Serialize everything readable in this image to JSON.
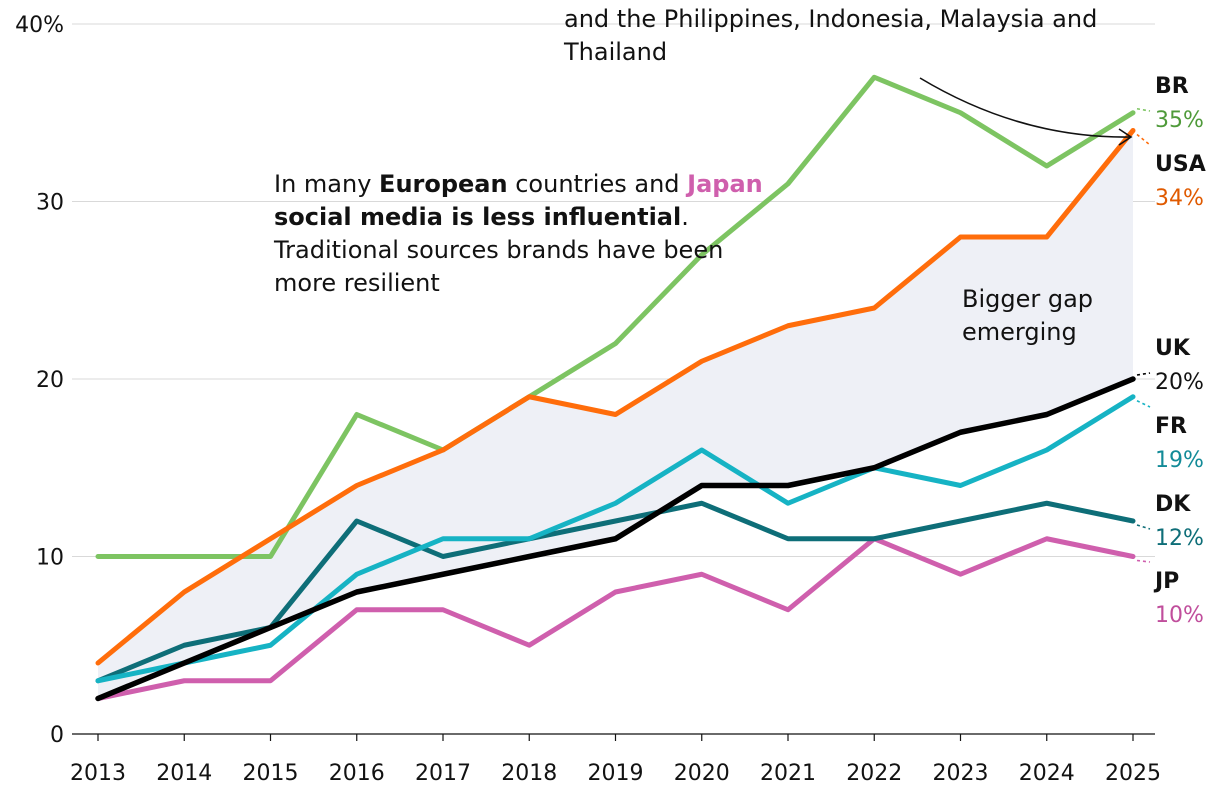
{
  "chart_data": {
    "type": "line",
    "x": [
      2013,
      2014,
      2015,
      2016,
      2017,
      2018,
      2019,
      2020,
      2021,
      2022,
      2023,
      2024,
      2025
    ],
    "ylim": [
      0,
      40
    ],
    "yticks": [
      "0",
      "10",
      "20",
      "30",
      "40%"
    ],
    "series": [
      {
        "name": "BR",
        "color": "#7dc462",
        "label_color": "#4f9a3a",
        "values": [
          10,
          10,
          10,
          18,
          16,
          19,
          22,
          27,
          31,
          37,
          35,
          32,
          35
        ],
        "end_label": "35%"
      },
      {
        "name": "USA",
        "color": "#ff6d0b",
        "label_color": "#e05a00",
        "values": [
          4,
          8,
          11,
          14,
          16,
          19,
          18,
          21,
          23,
          24,
          28,
          28,
          34
        ],
        "end_label": "34%"
      },
      {
        "name": "UK",
        "color": "#000000",
        "label_color": "#121212",
        "values": [
          2,
          4,
          6,
          8,
          9,
          10,
          11,
          14,
          14,
          15,
          17,
          18,
          20
        ],
        "end_label": "20%"
      },
      {
        "name": "FR",
        "color": "#16b3c4",
        "label_color": "#138b98",
        "values": [
          3,
          4,
          5,
          9,
          11,
          11,
          13,
          16,
          13,
          15,
          14,
          16,
          19
        ],
        "end_label": "19%"
      },
      {
        "name": "DK",
        "color": "#0e6e78",
        "label_color": "#0e6e78",
        "values": [
          3,
          5,
          6,
          12,
          10,
          11,
          12,
          13,
          11,
          11,
          12,
          13,
          12
        ],
        "end_label": "12%"
      },
      {
        "name": "JP",
        "color": "#cf5fad",
        "label_color": "#c04e9c",
        "values": [
          2,
          3,
          3,
          7,
          7,
          5,
          8,
          9,
          7,
          11,
          9,
          11,
          10
        ],
        "end_label": "10%"
      }
    ],
    "shaded_gap": {
      "between": [
        "USA",
        "UK"
      ],
      "color": "#eef0f6"
    }
  },
  "annotations": {
    "top_note": "and the Philippines, Indonesia, Malaysia and Thailand",
    "europe_note": {
      "part1": "In many ",
      "bold1": "European",
      "part2": " countries and ",
      "japan": "Japan",
      "bold2": "social media is less influential",
      "part3": ".",
      "part4": "Traditional sources brands have been more resilient"
    },
    "gap_note": "Bigger gap emerging"
  }
}
